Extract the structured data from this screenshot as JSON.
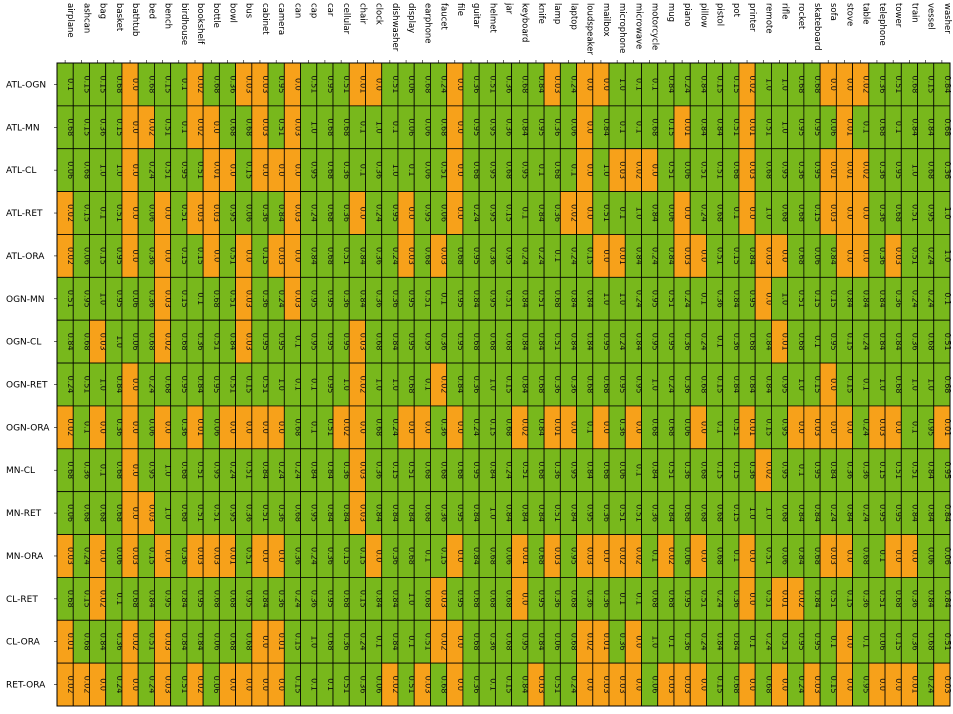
{
  "chart_data": {
    "type": "heatmap",
    "title": "",
    "xlabel": "",
    "ylabel": "",
    "colors": {
      "low": "#f7a11a",
      "high": "#78b81c",
      "grid": "#000000"
    },
    "threshold": 0.05,
    "columns": [
      "airplane",
      "ashcan",
      "bag",
      "basket",
      "bathtub",
      "bed",
      "bench",
      "birdhouse",
      "bookshelf",
      "bottle",
      "bowl",
      "bus",
      "cabinet",
      "camera",
      "can",
      "cap",
      "car",
      "cellular",
      "chair",
      "clock",
      "dishwasher",
      "display",
      "earphone",
      "faucet",
      "file",
      "guitar",
      "helmet",
      "jar",
      "keyboard",
      "knife",
      "lamp",
      "laptop",
      "loudspeaker",
      "mailbox",
      "microphone",
      "microwave",
      "motorcycle",
      "mug",
      "piano",
      "pillow",
      "pistol",
      "pot",
      "printer",
      "remote",
      "rifle",
      "rocket",
      "skateboard",
      "sofa",
      "stove",
      "table",
      "telephone",
      "tower",
      "train",
      "vessel",
      "washer"
    ],
    "rows": [
      {
        "label": "ATL-OGN",
        "values": [
          "0.1",
          "0.15",
          "0.15",
          "0.68",
          "0.0",
          "0.68",
          "0.15",
          "0.1",
          "0.02",
          "0.68",
          "0.36",
          "0.03",
          "0.03",
          "0.95",
          "0.0",
          "0.51",
          "0.95",
          "0.51",
          "0.01",
          "0.0",
          "0.51",
          "0.06",
          "0.68",
          "0.24",
          "0.0",
          "0.36",
          "0.51",
          "0.36",
          "0.68",
          "0.84",
          "0.03",
          "0.24",
          "0.0",
          "0.0",
          "1.0",
          "0.1",
          "0.1",
          "0.84",
          "0.24",
          "0.84",
          "0.15",
          "0.15",
          "0.02",
          "1.0",
          "1.0",
          "0.68",
          "0.68",
          "0.0",
          "0.0",
          "0.02",
          "0.36",
          "0.51",
          "0.68",
          "0.15",
          "0.84"
        ]
      },
      {
        "label": "ATL-MN",
        "values": [
          "0.68",
          "0.15",
          "0.36",
          "0.15",
          "0.0",
          "0.02",
          "0.51",
          "0.1",
          "0.02",
          "0.0",
          "0.68",
          "0.68",
          "0.03",
          "0.51",
          "0.03",
          "1.0",
          "0.68",
          "0.68",
          "0.1",
          "1.0",
          "0.1",
          "0.06",
          "0.06",
          "0.68",
          "0.0",
          "0.95",
          "0.95",
          "0.36",
          "0.84",
          "0.95",
          "0.36",
          "0.06",
          "0.0",
          "0.84",
          "0.1",
          "0.1",
          "0.68",
          "0.15",
          "0.01",
          "0.84",
          "0.84",
          "0.51",
          "0.01",
          "0.51",
          "1.0",
          "0.95",
          "0.95",
          "0.06",
          "0.01",
          "0.1",
          "0.68",
          "0.1",
          "0.84",
          "0.84",
          "0.68"
        ]
      },
      {
        "label": "ATL-CL",
        "values": [
          "0.06",
          "0.68",
          "1.0",
          "1.0",
          "0.0",
          "0.24",
          "0.51",
          "0.95",
          "0.51",
          "0.01",
          "0.0",
          "0.15",
          "0.0",
          "0.0",
          "0.0",
          "0.95",
          "0.68",
          "0.36",
          "0.1",
          "0.36",
          "1.0",
          "0.1",
          "0.06",
          "0.51",
          "0.0",
          "0.68",
          "0.95",
          "0.68",
          "0.95",
          "0.1",
          "0.68",
          "0.1",
          "0.0",
          "1.0",
          "0.03",
          "0.02",
          "0.0",
          "0.51",
          "0.06",
          "0.51",
          "0.51",
          "0.68",
          "0.03",
          "0.68",
          "0.95",
          "0.36",
          "0.95",
          "0.01",
          "0.01",
          "0.02",
          "0.36",
          "0.95",
          "1.0",
          "0.68",
          "0.36"
        ]
      },
      {
        "label": "ATL-RET",
        "values": [
          "0.02",
          "0.15",
          "0.1",
          "0.51",
          "0.0",
          "0.06",
          "0.0",
          "0.51",
          "0.03",
          "0.03",
          "0.95",
          "0.06",
          "0.36",
          "0.84",
          "0.03",
          "0.24",
          "0.68",
          "0.36",
          "0.0",
          "0.24",
          "0.95",
          "0.0",
          "0.95",
          "0.06",
          "0.0",
          "0.24",
          "0.95",
          "0.15",
          "0.1",
          "0.84",
          "0.36",
          "0.02",
          "0.0",
          "0.51",
          "0.1",
          "1.0",
          "0.84",
          "0.06",
          "0.0",
          "0.24",
          "0.68",
          "0.1",
          "0.0",
          "1.0",
          "0.68",
          "0.68",
          "0.15",
          "0.03",
          "0.0",
          "0.0",
          "0.36",
          "0.68",
          "0.51",
          "0.95",
          "1.0"
        ]
      },
      {
        "label": "ATL-ORA",
        "values": [
          "0.02",
          "0.06",
          "0.15",
          "0.95",
          "0.0",
          "0.36",
          "0.0",
          "0.15",
          "0.15",
          "0.0",
          "0.51",
          "0.0",
          "0.15",
          "0.03",
          "0.0",
          "0.84",
          "0.68",
          "0.51",
          "0.84",
          "0.36",
          "0.24",
          "0.03",
          "0.68",
          "0.03",
          "0.68",
          "0.95",
          "0.36",
          "0.95",
          "0.24",
          "0.24",
          "0.1",
          "0.24",
          "0.15",
          "0.0",
          "0.01",
          "0.84",
          "0.24",
          "0.84",
          "0.03",
          "0.0",
          "0.51",
          "0.15",
          "0.84",
          "0.03",
          "0.0",
          "0.68",
          "0.06",
          "0.84",
          "0.0",
          "0.0",
          "0.36",
          "0.03",
          "0.51",
          "0.24",
          "1.0"
        ]
      },
      {
        "label": "OGN-MN",
        "values": [
          "0.51",
          "0.95",
          "1.0",
          "0.95",
          "0.06",
          "0.36",
          "0.03",
          "0.15",
          "0.1",
          "0.68",
          "0.51",
          "0.03",
          "0.36",
          "0.24",
          "0.03",
          "0.95",
          "0.95",
          "0.36",
          "0.84",
          "0.36",
          "0.36",
          "0.95",
          "0.51",
          "0.1",
          "0.95",
          "0.84",
          "0.95",
          "0.51",
          "0.84",
          "0.51",
          "0.68",
          "0.84",
          "0.84",
          "1.0",
          "1.0",
          "0.24",
          "0.95",
          "0.51",
          "0.24",
          "0.1",
          "0.36",
          "0.84",
          "0.95",
          "0.0",
          "1.0",
          "0.51",
          "0.15",
          "0.15",
          "0.84",
          "0.84",
          "0.84",
          "0.36",
          "0.24",
          "0.24",
          "0.1"
        ]
      },
      {
        "label": "OGN-CL",
        "values": [
          "0.84",
          "0.68",
          "0.03",
          "1.0",
          "0.06",
          "0.68",
          "0.02",
          "0.68",
          "0.36",
          "0.51",
          "0.84",
          "0.03",
          "0.95",
          "0.95",
          "0.1",
          "0.95",
          "0.95",
          "0.95",
          "0.03",
          "0.68",
          "0.84",
          "0.95",
          "0.95",
          "0.36",
          "0.95",
          "0.68",
          "0.68",
          "0.68",
          "0.84",
          "0.84",
          "0.51",
          "0.84",
          "0.84",
          "0.95",
          "0.24",
          "0.84",
          "0.95",
          "0.95",
          "0.36",
          "0.24",
          "0.1",
          "0.36",
          "0.68",
          "0.84",
          "0.01",
          "0.68",
          "0.1",
          "0.95",
          "0.15",
          "0.24",
          "0.84",
          "0.84",
          "0.36",
          "0.68",
          "0.51"
        ]
      },
      {
        "label": "OGN-RET",
        "values": [
          "0.24",
          "0.51",
          "1.0",
          "0.84",
          "0.0",
          "0.24",
          "0.68",
          "0.95",
          "0.84",
          "0.95",
          "0.51",
          "0.15",
          "0.51",
          "1.0",
          "0.1",
          "0.1",
          "0.95",
          "1.0",
          "0.02",
          "1.0",
          "1.0",
          "0.68",
          "0.1",
          "0.02",
          "0.84",
          "0.36",
          "1.0",
          "0.15",
          "0.84",
          "0.68",
          "0.36",
          "0.36",
          "0.68",
          "0.68",
          "0.95",
          "0.95",
          "1.0",
          "0.24",
          "0.36",
          "0.68",
          "0.15",
          "0.84",
          "0.84",
          "0.84",
          "0.95",
          "1.0",
          "0.15",
          "0.0",
          "0.15",
          "0.1",
          "1.0",
          "0.68",
          "1.0",
          "1.0",
          "0.68"
        ]
      },
      {
        "label": "OGN-ORA",
        "values": [
          "0.02",
          "0.1",
          "0.0",
          "0.36",
          "0.0",
          "0.06",
          "0.0",
          "0.36",
          "0.01",
          "0.06",
          "0.0",
          "0.0",
          "0.0",
          "0.0",
          "0.68",
          "0.1",
          "0.51",
          "0.02",
          "0.0",
          "0.68",
          "0.24",
          "0.0",
          "0.0",
          "0.36",
          "0.0",
          "0.24",
          "0.15",
          "0.68",
          "0.02",
          "0.84",
          "0.01",
          "0.0",
          "0.1",
          "0.0",
          "0.36",
          "0.0",
          "0.68",
          "0.68",
          "0.06",
          "0.0",
          "0.1",
          "0.51",
          "0.01",
          "0.15",
          "0.95",
          "0.0",
          "0.03",
          "0.0",
          "0.0",
          "0.24",
          "0.03",
          "0.0",
          "0.1",
          "0.95",
          "0.01"
        ]
      },
      {
        "label": "MN-CL",
        "values": [
          "0.68",
          "0.36",
          "0.1",
          "0.68",
          "0.0",
          "0.95",
          "1.0",
          "0.68",
          "0.51",
          "0.95",
          "0.24",
          "0.51",
          "0.84",
          "0.24",
          "0.24",
          "0.84",
          "0.84",
          "0.36",
          "0.03",
          "0.36",
          "0.15",
          "0.51",
          "0.68",
          "0.68",
          "0.68",
          "0.95",
          "0.84",
          "0.24",
          "0.51",
          "0.68",
          "0.36",
          "0.95",
          "0.84",
          "0.68",
          "0.06",
          "0.1",
          "0.84",
          "0.51",
          "0.36",
          "0.68",
          "0.15",
          "0.15",
          "0.36",
          "0.02",
          "0.95",
          "0.1",
          "0.95",
          "0.84",
          "0.36",
          "0.36",
          "0.15",
          "0.51",
          "0.51",
          "0.84",
          "0.95"
        ]
      },
      {
        "label": "MN-RET",
        "values": [
          "0.06",
          "0.68",
          "0.68",
          "0.68",
          "0.0",
          "0.03",
          "1.0",
          "0.68",
          "0.51",
          "0.51",
          "0.95",
          "0.36",
          "0.51",
          "0.36",
          "0.68",
          "0.95",
          "0.84",
          "0.84",
          "0.03",
          "0.84",
          "0.84",
          "0.84",
          "0.68",
          "0.36",
          "0.95",
          "0.84",
          "1.0",
          "0.84",
          "0.84",
          "0.84",
          "0.51",
          "0.84",
          "0.95",
          "0.36",
          "0.51",
          "0.51",
          "0.36",
          "0.84",
          "0.68",
          "0.68",
          "0.68",
          "0.15",
          "1.0",
          "1.0",
          "0.68",
          "0.84",
          "0.84",
          "0.24",
          "0.84",
          "0.24",
          "0.95",
          "0.95",
          "0.84",
          "0.84",
          "0.84"
        ]
      },
      {
        "label": "MN-ORA",
        "values": [
          "0.03",
          "0.24",
          "0.0",
          "0.06",
          "0.03",
          "0.15",
          "0.0",
          "0.36",
          "0.03",
          "0.03",
          "0.01",
          "0.51",
          "0.0",
          "0.0",
          "0.36",
          "0.24",
          "0.36",
          "0.15",
          "0.15",
          "0.0",
          "0.36",
          "0.68",
          "0.1",
          "0.15",
          "0.0",
          "0.84",
          "0.68",
          "0.06",
          "0.01",
          "0.68",
          "0.03",
          "0.95",
          "0.03",
          "0.0",
          "0.02",
          "0.02",
          "0.1",
          "0.02",
          "0.06",
          "0.0",
          "0.68",
          "0.1",
          "0.0",
          "0.51",
          "0.06",
          "0.84",
          "0.68",
          "0.03",
          "0.0",
          "0.68",
          "0.1",
          "0.0",
          "0.0",
          "0.06",
          "0.06"
        ]
      },
      {
        "label": "CL-RET",
        "values": [
          "0.68",
          "0.15",
          "0.02",
          "0.1",
          "0.68",
          "0.84",
          "0.95",
          "0.84",
          "0.95",
          "0.68",
          "0.68",
          "0.95",
          "0.84",
          "0.36",
          "0.24",
          "0.36",
          "0.95",
          "0.68",
          "0.15",
          "0.84",
          "0.84",
          "1.0",
          "0.68",
          "0.03",
          "0.95",
          "0.68",
          "0.68",
          "0.68",
          "0.0",
          "0.95",
          "0.36",
          "0.68",
          "0.36",
          "0.36",
          "0.1",
          "0.1",
          "0.68",
          "0.68",
          "0.95",
          "0.51",
          "0.24",
          "0.36",
          "0.0",
          "0.51",
          "0.01",
          "0.02",
          "0.84",
          "0.51",
          "0.15",
          "0.36",
          "0.51",
          "0.68",
          "0.36",
          "0.84",
          "0.84"
        ]
      },
      {
        "label": "CL-ORA",
        "values": [
          "0.01",
          "0.68",
          "0.84",
          "0.36",
          "0.02",
          "0.51",
          "0.03",
          "0.84",
          "0.84",
          "0.06",
          "0.68",
          "0.68",
          "0.0",
          "0.01",
          "0.15",
          "1.0",
          "0.68",
          "0.36",
          "0.24",
          "0.1",
          "0.84",
          "0.1",
          "0.51",
          "0.02",
          "0.0",
          "0.68",
          "0.36",
          "0.68",
          "0.95",
          "0.84",
          "0.06",
          "0.68",
          "0.02",
          "0.01",
          "0.36",
          "0.0",
          "1.0",
          "0.1",
          "0.36",
          "0.24",
          "0.84",
          "0.84",
          "0.1",
          "0.24",
          "0.51",
          "0.95",
          "0.95",
          "0.1",
          "0.0",
          "0.1",
          "0.06",
          "0.15",
          "0.36",
          "0.68",
          "0.51"
        ]
      },
      {
        "label": "RET-ORA",
        "values": [
          "0.02",
          "0.02",
          "0.0",
          "0.24",
          "0.0",
          "0.24",
          "0.03",
          "0.51",
          "0.02",
          "0.06",
          "0.0",
          "0.0",
          "0.0",
          "0.0",
          "0.15",
          "0.1",
          "0.1",
          "0.51",
          "0.36",
          "0.06",
          "0.02",
          "0.51",
          "0.03",
          "0.68",
          "0.0",
          "0.36",
          "0.1",
          "0.15",
          "0.84",
          "0.03",
          "0.51",
          "0.24",
          "0.0",
          "0.03",
          "0.03",
          "0.0",
          "0.06",
          "0.03",
          "0.03",
          "0.0",
          "0.15",
          "0.68",
          "0.0",
          "0.68",
          "0.0",
          "0.24",
          "0.03",
          "0.15",
          "0.0",
          "0.95",
          "0.0",
          "0.0",
          "0.01",
          "0.24",
          "0.03"
        ]
      }
    ]
  }
}
